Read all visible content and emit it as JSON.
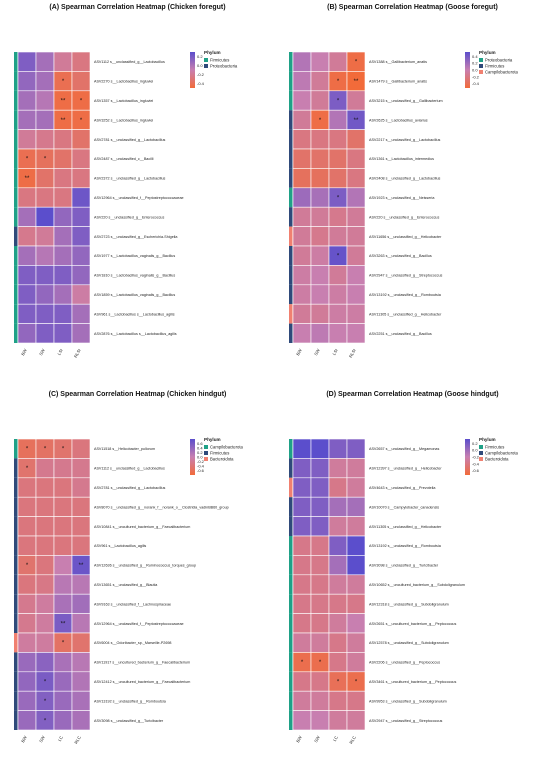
{
  "colors": {
    "low": "#f26b3a",
    "mid": "#c87fb0",
    "high": "#5b4ecc",
    "grid": "#ffffff"
  },
  "chart_data": [
    {
      "type": "heatmap",
      "title": "(A) Spearman Correlation Heatmap (Chicken foregut)",
      "x": [
        "BW",
        "SW",
        "LSI",
        "RLSI"
      ],
      "rows": [
        "ASV1112 s__unclassified_g__Lactobacillus",
        "ASV2270 s__Lactobacillus_ingluviei",
        "ASV1357 s__Lactobacillus_ingluviei",
        "ASV3252 s__Lactobacillus_ingluviei",
        "ASV2781 s__unclassified_g__Lactobacillus",
        "ASV2487 s__unclassified_c__Bacilli",
        "ASV2372 s__unclassified_g__Lactobacillus",
        "ASV12964 s__unclassified_f__Peptostreptococcaceae",
        "ASV220 s__unclassified_g__Enterococcus",
        "ASV2723 s__unclassified_g__Escherichia-Shigella",
        "ASV1977 s__Lactobacillus_vaginalis_g__Bacillus",
        "ASV1810 s__Lactobacillus_vaginalis_g__Bacillus",
        "ASV1859 s__Lactobacillus_vaginalis_g__Bacillus",
        "ASV961 s__Lactobacillus s__Lactobacillus_agilis",
        "ASV2876 s__Lactobacillus s__Lactobacillus_agilis"
      ],
      "values": [
        [
          0.2,
          0.1,
          -0.1,
          -0.2
        ],
        [
          0.15,
          0.1,
          -0.4,
          -0.3
        ],
        [
          0.1,
          0.05,
          -0.45,
          -0.45
        ],
        [
          0.1,
          0.1,
          -0.45,
          -0.45
        ],
        [
          -0.1,
          -0.15,
          -0.2,
          -0.3
        ],
        [
          -0.4,
          -0.35,
          -0.3,
          -0.2
        ],
        [
          -0.45,
          -0.3,
          -0.2,
          -0.2
        ],
        [
          -0.2,
          -0.2,
          -0.2,
          0.25
        ],
        [
          0.1,
          0.3,
          0.15,
          0.2
        ],
        [
          -0.15,
          -0.1,
          0.1,
          0.2
        ],
        [
          0.1,
          0.05,
          0.1,
          0.15
        ],
        [
          0.2,
          0.2,
          0.2,
          0.15
        ],
        [
          0.2,
          0.15,
          0.1,
          -0.05
        ],
        [
          0.2,
          0.2,
          0.2,
          0.1
        ],
        [
          0.15,
          0.2,
          0.2,
          0.1
        ]
      ],
      "stars": [
        [
          "",
          "",
          "",
          ""
        ],
        [
          "",
          "",
          "*",
          ""
        ],
        [
          "",
          "",
          "**",
          "*"
        ],
        [
          "",
          "",
          "**",
          "*"
        ],
        [
          "",
          "",
          "",
          ""
        ],
        [
          "*",
          "*",
          "",
          ""
        ],
        [
          "**",
          "",
          "",
          ""
        ],
        [
          "",
          "",
          "",
          ""
        ],
        [
          "",
          "",
          "",
          ""
        ],
        [
          "",
          "",
          "",
          ""
        ],
        [
          "",
          "",
          "",
          ""
        ],
        [
          "",
          "",
          "",
          ""
        ],
        [
          "",
          "",
          "",
          ""
        ],
        [
          "",
          "",
          "",
          ""
        ],
        [
          "",
          "",
          "",
          ""
        ]
      ],
      "row_phylum": [
        0,
        0,
        0,
        0,
        0,
        0,
        0,
        0,
        0,
        1,
        0,
        0,
        0,
        0,
        0
      ],
      "legend": {
        "ticks": [
          "0.2",
          "0.0",
          "-0.2",
          "-0.4"
        ],
        "max": 0.3,
        "min": -0.5,
        "title": "Phylum",
        "items": [
          "Firmicutes",
          "Proteobacteria"
        ],
        "colors": [
          "#1fa187",
          "#2f4a7a"
        ]
      }
    },
    {
      "type": "heatmap",
      "title": "(B) Spearman Correlation Heatmap (Goose foregut)",
      "x": [
        "BW",
        "SW",
        "LSI",
        "RLSI"
      ],
      "rows": [
        "ASV1388 s__Gallibacterium_anatis",
        "ASV1479 s__Gallibacterium_anatis",
        "ASV3215 s__unclassified_g__Gallibacterium",
        "ASV2625 s__Lactobacillus_aviarius",
        "ASV2217 s__unclassified_g__Lactobacillus",
        "ASV1361 s__Lactobacillus_intermedius",
        "ASV2408 s__unclassified_g__Lactobacillus",
        "ASV1923 s__unclassified_g__Neisseria",
        "ASV220 s__unclassified_g__Enterococcus",
        "ASV11656 s__unclassified_g__Helicobacter",
        "ASV3263 s__unclassified_g__Bacillus",
        "ASV2947 s__unclassified_g__Streptococcus",
        "ASV13192 s__unclassified_g__Romboutsia",
        "ASV11305 s__unclassified_g__Helicobacter",
        "ASV2251 s__unclassified_g__Bacillus"
      ],
      "values": [
        [
          0.1,
          0.0,
          -0.1,
          -0.45
        ],
        [
          0.05,
          -0.1,
          -0.45,
          -0.5
        ],
        [
          0.0,
          -0.1,
          0.35,
          -0.1
        ],
        [
          -0.1,
          -0.45,
          0.1,
          0.4
        ],
        [
          -0.2,
          -0.2,
          -0.2,
          -0.3
        ],
        [
          -0.3,
          -0.3,
          -0.3,
          -0.2
        ],
        [
          -0.35,
          -0.35,
          -0.3,
          -0.2
        ],
        [
          0.2,
          0.15,
          0.35,
          0.1
        ],
        [
          -0.1,
          -0.1,
          -0.15,
          -0.1
        ],
        [
          -0.1,
          -0.15,
          -0.1,
          -0.1
        ],
        [
          -0.1,
          -0.05,
          0.45,
          -0.1
        ],
        [
          -0.05,
          0.0,
          -0.1,
          0.0
        ],
        [
          -0.05,
          0.0,
          -0.05,
          0.0
        ],
        [
          -0.1,
          -0.1,
          -0.05,
          -0.05
        ],
        [
          0.0,
          0.05,
          0.0,
          0.0
        ]
      ],
      "stars": [
        [
          "",
          "",
          "",
          "*"
        ],
        [
          "",
          "",
          "*",
          "**"
        ],
        [
          "",
          "",
          "*",
          ""
        ],
        [
          "",
          "*",
          "",
          "**"
        ],
        [
          "",
          "",
          "",
          ""
        ],
        [
          "",
          "",
          "",
          ""
        ],
        [
          "",
          "",
          "",
          ""
        ],
        [
          "",
          "",
          "*",
          ""
        ],
        [
          "",
          "",
          "",
          ""
        ],
        [
          "",
          "",
          "",
          ""
        ],
        [
          "",
          "",
          "*",
          ""
        ],
        [
          "",
          "",
          "",
          ""
        ],
        [
          "",
          "",
          "",
          ""
        ],
        [
          "",
          "",
          "",
          ""
        ],
        [
          "",
          "",
          "",
          ""
        ]
      ],
      "row_phylum": [
        0,
        0,
        0,
        1,
        1,
        1,
        1,
        0,
        1,
        2,
        1,
        1,
        1,
        2,
        1
      ],
      "legend": {
        "ticks": [
          "0.4",
          "0.2",
          "0.0",
          "-0.2",
          "-0.4"
        ],
        "max": 0.5,
        "min": -0.5,
        "title": "Phylum",
        "items": [
          "Proteobacteria",
          "Firmicutes",
          "Campilobacterota"
        ],
        "colors": [
          "#1fa187",
          "#2f4a7a",
          "#f08070"
        ]
      }
    },
    {
      "type": "heatmap",
      "title": "(C) Spearman Correlation Heatmap (Chicken hindgut)",
      "x": [
        "BW",
        "SW",
        "LC",
        "RLC"
      ],
      "rows": [
        "ASV11518 s__Helicobacter_pullorum",
        "ASV1112 s__unclassified_g__Lactobacillus",
        "ASV2781 s__unclassified_g__Lactobacillus",
        "ASV8070 s__unclassified_g__norank_f__norank_o__Clostridia_vadinBB60_group",
        "ASV10841 s__uncultured_bacterium_g__Faecalibacterium",
        "ASV961 s__Lactobacillus_agilis",
        "ASV12636 s__unclassified_g__Ruminococcus_torques_group",
        "ASV13651 s__unclassified_g__Blautia",
        "ASV9163 s__unclassified_f__Lachnospiraceae",
        "ASV12964 s__unclassified_f__Peptostreptococcaceae",
        "ASV6004 s__Odoribacter_sp._Marseille-P2698",
        "ASV11917 s__uncultured_bacterium_g__Faecalibacterium",
        "ASV12412 s__uncultured_bacterium_g__Faecalibacterium",
        "ASV13192 s__unclassified_g__Romboutsia",
        "ASV3098 s__unclassified_g__Turicibacter"
      ],
      "values": [
        [
          -0.5,
          -0.45,
          -0.4,
          -0.3
        ],
        [
          -0.4,
          -0.2,
          -0.2,
          -0.2
        ],
        [
          -0.3,
          -0.3,
          -0.3,
          -0.2
        ],
        [
          -0.3,
          -0.3,
          -0.3,
          -0.3
        ],
        [
          -0.3,
          -0.3,
          -0.3,
          -0.3
        ],
        [
          -0.3,
          -0.3,
          -0.3,
          -0.3
        ],
        [
          -0.4,
          -0.3,
          0.0,
          0.6
        ],
        [
          -0.3,
          -0.25,
          0.1,
          0.1
        ],
        [
          -0.2,
          -0.1,
          0.2,
          0.25
        ],
        [
          -0.2,
          -0.1,
          0.5,
          0.1
        ],
        [
          -0.1,
          -0.1,
          -0.45,
          -0.4
        ],
        [
          0.3,
          0.4,
          0.2,
          0.1
        ],
        [
          0.35,
          0.5,
          0.3,
          0.15
        ],
        [
          0.3,
          0.45,
          0.3,
          0.2
        ],
        [
          0.3,
          0.45,
          0.3,
          0.2
        ]
      ],
      "stars": [
        [
          "*",
          "*",
          "*",
          ""
        ],
        [
          "*",
          "",
          "",
          ""
        ],
        [
          "",
          "",
          "",
          ""
        ],
        [
          "",
          "",
          "",
          ""
        ],
        [
          "",
          "",
          "",
          ""
        ],
        [
          "",
          "",
          "",
          ""
        ],
        [
          "*",
          "",
          "",
          "**"
        ],
        [
          "",
          "",
          "",
          ""
        ],
        [
          "",
          "",
          "",
          ""
        ],
        [
          "",
          "",
          "**",
          ""
        ],
        [
          "",
          "",
          "*",
          ""
        ],
        [
          "",
          "",
          "",
          ""
        ],
        [
          "",
          "*",
          "",
          ""
        ],
        [
          "",
          "*",
          "",
          ""
        ],
        [
          "",
          "*",
          "",
          ""
        ]
      ],
      "row_phylum": [
        0,
        1,
        1,
        1,
        1,
        1,
        1,
        1,
        1,
        1,
        2,
        1,
        1,
        1,
        1
      ],
      "legend": {
        "ticks": [
          "0.6",
          "0.4",
          "0.2",
          "0.0",
          "-0.2",
          "-0.4",
          "-0.6"
        ],
        "max": 0.7,
        "min": -0.7,
        "title": "Phylum",
        "items": [
          "Campilobacterota",
          "Firmicutes",
          "Bacteroidota"
        ],
        "colors": [
          "#1fa187",
          "#2f4a7a",
          "#f08070"
        ]
      }
    },
    {
      "type": "heatmap",
      "title": "(D) Spearman Correlation Heatmap (Goose hindgut)",
      "x": [
        "BW",
        "SW",
        "LC",
        "RLC"
      ],
      "rows": [
        "ASV2657 s__unclassified_g__Megamonas",
        "ASV12397 s__unclassified_g__Helicobacter",
        "ASV4643 s__unclassified_g__Prevotella",
        "ASV10070 s__Campylobacter_canadensis",
        "ASV11305 s__unclassified_g__Helicobacter",
        "ASV13192 s__unclassified_g__Romboutsia",
        "ASV3098 s__unclassified_g__Turicibacter",
        "ASV10652 s__uncultured_bacterium_g__Subdoligranulum",
        "ASV12318 s__unclassified_g__Subdoligranulum",
        "ASV2651 s__uncultured_bacterium_g__Peptococcus",
        "ASV12578 s__unclassified_g__Subdoligranulum",
        "ASV2206 s__unclassified_g__Peptococcus",
        "ASV3461 s__uncultured_bacterium_g__Peptococcus",
        "ASV9953 s__unclassified_g__Subdoligranulum",
        "ASV2947 s__unclassified_g__Streptococcus"
      ],
      "values": [
        [
          0.3,
          0.3,
          0.2,
          0.2
        ],
        [
          0.2,
          0.2,
          -0.1,
          -0.1
        ],
        [
          0.2,
          0.2,
          -0.2,
          -0.1
        ],
        [
          0.2,
          0.2,
          0.1,
          0.1
        ],
        [
          0.2,
          0.2,
          -0.1,
          -0.1
        ],
        [
          -0.2,
          -0.2,
          0.2,
          0.3
        ],
        [
          -0.2,
          -0.2,
          0.1,
          0.3
        ],
        [
          -0.2,
          -0.2,
          -0.1,
          -0.1
        ],
        [
          -0.2,
          -0.2,
          -0.2,
          -0.2
        ],
        [
          -0.2,
          -0.2,
          -0.1,
          0.0
        ],
        [
          -0.1,
          -0.1,
          -0.2,
          -0.1
        ],
        [
          -0.5,
          -0.5,
          -0.2,
          -0.1
        ],
        [
          -0.2,
          -0.2,
          -0.45,
          -0.5
        ],
        [
          -0.1,
          -0.1,
          -0.2,
          -0.2
        ],
        [
          0.0,
          0.0,
          -0.1,
          -0.1
        ]
      ],
      "stars": [
        [
          "",
          "",
          "",
          ""
        ],
        [
          "",
          "",
          "",
          ""
        ],
        [
          "",
          "",
          "",
          ""
        ],
        [
          "",
          "",
          "",
          ""
        ],
        [
          "",
          "",
          "",
          ""
        ],
        [
          "",
          "",
          "",
          ""
        ],
        [
          "",
          "",
          "",
          ""
        ],
        [
          "",
          "",
          "",
          ""
        ],
        [
          "",
          "",
          "",
          ""
        ],
        [
          "",
          "",
          "",
          ""
        ],
        [
          "",
          "",
          "",
          ""
        ],
        [
          "*",
          "*",
          "",
          ""
        ],
        [
          "",
          "",
          "*",
          "*"
        ],
        [
          "",
          "",
          "",
          ""
        ],
        [
          "",
          "",
          "",
          ""
        ]
      ],
      "row_phylum": [
        0,
        1,
        2,
        1,
        1,
        0,
        0,
        0,
        0,
        0,
        0,
        0,
        0,
        0,
        0
      ],
      "legend": {
        "ticks": [
          "0.2",
          "0.0",
          "-0.2",
          "-0.4",
          "-0.6"
        ],
        "max": 0.3,
        "min": -0.6,
        "title": "Phylum",
        "items": [
          "Firmicutes",
          "Campilobacterota",
          "Bacteroidota"
        ],
        "colors": [
          "#1fa187",
          "#2f4a7a",
          "#f08070"
        ]
      }
    }
  ]
}
